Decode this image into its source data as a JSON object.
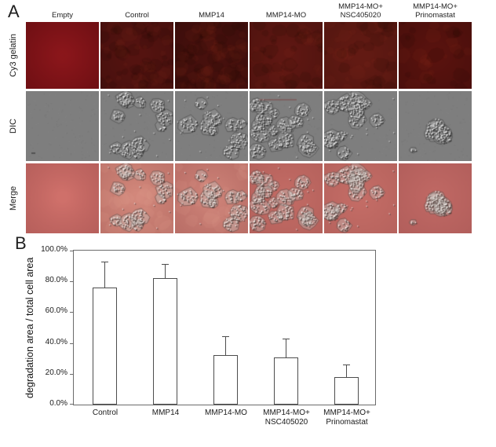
{
  "panel_a": {
    "label": "A",
    "rows": [
      {
        "label": "Cy3 gelatin"
      },
      {
        "label": "DIC"
      },
      {
        "label": "Merge"
      }
    ],
    "columns": [
      {
        "l1": "Empty"
      },
      {
        "l1": "Control"
      },
      {
        "l1": "MMP14"
      },
      {
        "l1": "MMP14-MO"
      },
      {
        "l1": "MMP14-MO+",
        "l2": "NSC405020"
      },
      {
        "l1": "MMP14-MO+",
        "l2": "Prinomastat"
      }
    ],
    "colors": {
      "cy3_tiles": [
        "#7e1216",
        "#541310",
        "#47100d",
        "#5e1712",
        "#621a13",
        "#58120e"
      ],
      "dic_base": "#7e7e7e",
      "merge_tiles": [
        "#c26a66",
        "#c67e74",
        "#c07770",
        "#bd6a64",
        "#bf6c66",
        "#b96663"
      ]
    }
  },
  "panel_b": {
    "label": "B",
    "chart_data": {
      "type": "bar",
      "categories": [
        "Control",
        "MMP14",
        "MMP14-MO",
        "MMP14-MO+ NSC405020",
        "MMP14-MO+ Prinomastat"
      ],
      "values": [
        76,
        82,
        32,
        30.5,
        18
      ],
      "errors": [
        16.5,
        9,
        12,
        12,
        7.5
      ],
      "title": "",
      "xlabel": "",
      "ylabel": "degradation area / total cell area",
      "ylim": [
        0,
        100
      ],
      "yticks": [
        "0.0%",
        "20.0%",
        "40.0%",
        "60.0%",
        "80.0%",
        "100.0%"
      ],
      "grid": false,
      "legend": false,
      "bar_fill": "#ffffff",
      "bar_border": "#4d4d4d",
      "axis_color": "#6b6b6b"
    },
    "xtick_labels": [
      {
        "l1": "Control"
      },
      {
        "l1": "MMP14"
      },
      {
        "l1": "MMP14-MO"
      },
      {
        "l1": "MMP14-MO+",
        "l2": "NSC405020"
      },
      {
        "l1": "MMP14-MO+",
        "l2": "Prinomastat"
      }
    ]
  }
}
